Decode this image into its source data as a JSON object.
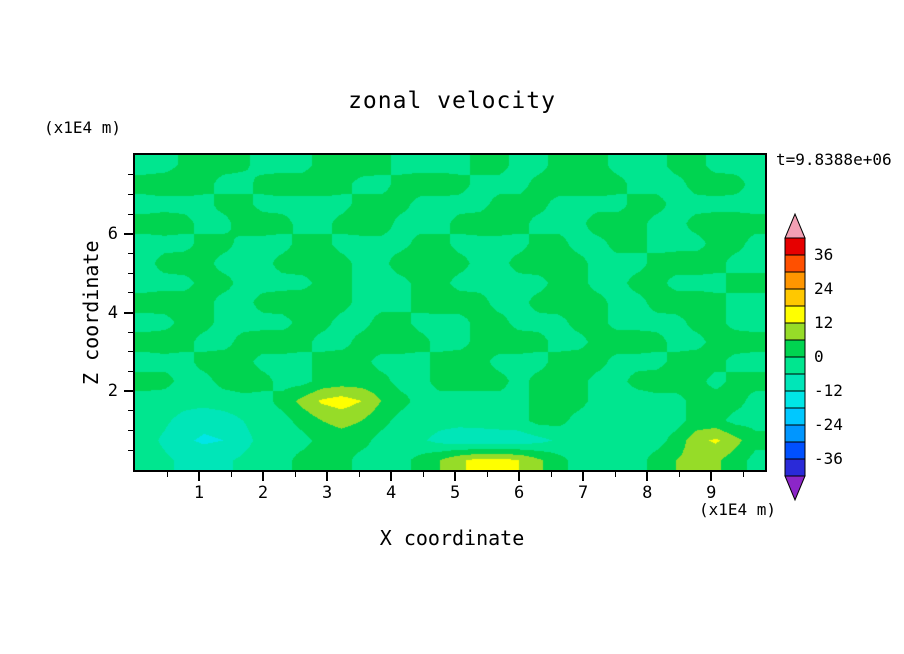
{
  "figure": {
    "title": "zonal velocity",
    "annotation": "t=9.8388e+06",
    "background": "#ffffff"
  },
  "axes": {
    "x": {
      "label": "X coordinate",
      "units": "(x1E4 m)",
      "ticks": [
        "1",
        "2",
        "3",
        "4",
        "5",
        "6",
        "7",
        "8",
        "9"
      ],
      "tick_values": [
        1,
        2,
        3,
        4,
        5,
        6,
        7,
        8,
        9
      ],
      "range": [
        0,
        9.84
      ]
    },
    "y": {
      "label": "Z coordinate",
      "units": "(x1E4 m)",
      "ticks": [
        "2",
        "4",
        "6"
      ],
      "tick_values": [
        2,
        4,
        6
      ],
      "range": [
        0,
        8
      ]
    }
  },
  "colorbar": {
    "labels": [
      "36",
      "24",
      "12",
      "0",
      "-12",
      "-24",
      "-36"
    ],
    "label_values": [
      36,
      24,
      12,
      0,
      -12,
      -24,
      -36
    ]
  },
  "chart_data": {
    "type": "heatmap",
    "title": "zonal velocity",
    "xlabel": "X coordinate",
    "ylabel": "Z coordinate",
    "x_units": "(x1E4 m)",
    "y_units": "(x1E4 m)",
    "time_annotation": "t=9.8388e+06",
    "x_range": [
      0,
      9.84
    ],
    "y_range": [
      0,
      8
    ],
    "legend_position": "right",
    "contour_levels": [
      -42,
      -36,
      -30,
      -24,
      -18,
      -12,
      -6,
      0,
      6,
      12,
      18,
      24,
      30,
      36,
      42
    ],
    "colors": [
      "#2A2AD8",
      "#0050FF",
      "#0096FF",
      "#00C8FF",
      "#00E6E6",
      "#00E6B8",
      "#00E68F",
      "#00D450",
      "#96DC28",
      "#FFFF00",
      "#FFC800",
      "#FF9600",
      "#FF5000",
      "#E60000"
    ],
    "under_color": "#8C26C8",
    "over_color": "#F2A0B4",
    "grid_orientation": "row-major; first row is top of plot (z=8), last row is bottom (z=0); columns left (x=0) to right (x=9.84)",
    "grid": [
      [
        -2,
        -2,
        1,
        2,
        2,
        1,
        -2,
        -2,
        -2,
        2,
        3,
        3,
        2,
        -2,
        -2,
        -2,
        -2,
        2,
        2,
        -2,
        -2,
        2,
        3,
        2,
        -2,
        -2,
        -2,
        2,
        2,
        -2,
        -2,
        -2
      ],
      [
        2,
        3,
        3,
        2,
        -2,
        -2,
        2,
        3,
        3,
        3,
        2,
        -2,
        -2,
        2,
        3,
        3,
        2,
        -2,
        -2,
        -2,
        2,
        3,
        3,
        3,
        2,
        -2,
        -2,
        -2,
        2,
        3,
        2,
        -2
      ],
      [
        -2,
        -2,
        -2,
        -2,
        2,
        2,
        -2,
        -2,
        -2,
        -2,
        -2,
        2,
        2,
        2,
        -2,
        -2,
        -2,
        -2,
        2,
        2,
        2,
        -2,
        -2,
        -2,
        -2,
        2,
        2,
        -2,
        -2,
        -2,
        -2,
        -2
      ],
      [
        2,
        3,
        2,
        -2,
        -2,
        3,
        3,
        2,
        -2,
        -2,
        2,
        3,
        3,
        -2,
        -2,
        -2,
        2,
        3,
        3,
        2,
        -2,
        -2,
        -2,
        3,
        3,
        2,
        -2,
        -2,
        2,
        3,
        3,
        2
      ],
      [
        -2,
        -2,
        -2,
        2,
        2,
        -2,
        -2,
        -2,
        2,
        2,
        -2,
        -2,
        -2,
        -2,
        2,
        2,
        -2,
        -2,
        -2,
        -2,
        2,
        2,
        -2,
        -2,
        2,
        2,
        -2,
        -2,
        -2,
        2,
        2,
        -2
      ],
      [
        -2,
        2,
        3,
        2,
        -2,
        -2,
        -2,
        2,
        3,
        3,
        2,
        -2,
        -2,
        3,
        4,
        3,
        2,
        -2,
        -2,
        2,
        3,
        3,
        2,
        -2,
        -2,
        -2,
        2,
        3,
        3,
        2,
        -2,
        -2
      ],
      [
        -2,
        -2,
        -2,
        2,
        2,
        -2,
        -2,
        -2,
        -2,
        2,
        2,
        -2,
        -2,
        -2,
        2,
        2,
        -2,
        -2,
        -2,
        -2,
        -2,
        2,
        2,
        -2,
        -2,
        2,
        2,
        -2,
        -2,
        -2,
        2,
        2
      ],
      [
        2,
        3,
        3,
        2,
        -2,
        -2,
        2,
        3,
        4,
        3,
        2,
        -2,
        -2,
        -2,
        2,
        3,
        3,
        2,
        -2,
        -2,
        2,
        3,
        3,
        2,
        -2,
        -2,
        2,
        3,
        3,
        2,
        -2,
        -2
      ],
      [
        -2,
        -2,
        2,
        2,
        -2,
        -2,
        -2,
        -2,
        2,
        2,
        -2,
        -2,
        2,
        2,
        -2,
        -2,
        -2,
        2,
        2,
        -2,
        -2,
        -2,
        2,
        2,
        -2,
        -2,
        -2,
        -2,
        2,
        2,
        -2,
        -2
      ],
      [
        2,
        3,
        2,
        -2,
        -2,
        2,
        3,
        3,
        2,
        -2,
        -2,
        2,
        3,
        3,
        2,
        -2,
        -2,
        2,
        3,
        3,
        2,
        -2,
        -2,
        2,
        3,
        3,
        2,
        -2,
        -2,
        2,
        3,
        2
      ],
      [
        -2,
        -2,
        -2,
        2,
        3,
        2,
        -2,
        -2,
        -2,
        2,
        3,
        2,
        -2,
        -2,
        -2,
        2,
        3,
        2,
        -2,
        -2,
        -2,
        2,
        3,
        2,
        -2,
        -2,
        -2,
        2,
        3,
        2,
        -2,
        -2
      ],
      [
        2,
        2,
        -2,
        -2,
        2,
        3,
        2,
        -2,
        -2,
        2,
        3,
        3,
        2,
        -2,
        -2,
        2,
        3,
        3,
        2,
        -2,
        2,
        3,
        2,
        -2,
        -2,
        2,
        3,
        3,
        2,
        -2,
        2,
        2
      ],
      [
        -2,
        -3,
        -4,
        -4,
        -3,
        -2,
        -2,
        2,
        8,
        13,
        15,
        12,
        6,
        2,
        -2,
        -2,
        -3,
        -3,
        -2,
        -2,
        2,
        3,
        2,
        -2,
        -3,
        -3,
        -2,
        -2,
        2,
        3,
        2,
        -2
      ],
      [
        -3,
        -5,
        -8,
        -10,
        -9,
        -6,
        -3,
        -2,
        2,
        6,
        8,
        6,
        2,
        -2,
        -3,
        -4,
        -4,
        -3,
        -2,
        -2,
        2,
        2,
        -2,
        -3,
        -4,
        -3,
        -2,
        -2,
        2,
        2,
        -2,
        -2
      ],
      [
        -4,
        -7,
        -11,
        -13,
        -12,
        -8,
        -4,
        -2,
        -2,
        2,
        3,
        2,
        -2,
        -3,
        -5,
        -8,
        -10,
        -11,
        -11,
        -10,
        -8,
        -5,
        -3,
        -2,
        -2,
        -2,
        -2,
        2,
        10,
        13,
        8,
        2
      ],
      [
        -3,
        -5,
        -7,
        -8,
        -7,
        -5,
        -3,
        -2,
        2,
        3,
        2,
        -2,
        -2,
        -2,
        2,
        6,
        11,
        14,
        14,
        12,
        7,
        2,
        -2,
        -2,
        -2,
        -2,
        2,
        6,
        9,
        7,
        3,
        -2
      ]
    ]
  }
}
